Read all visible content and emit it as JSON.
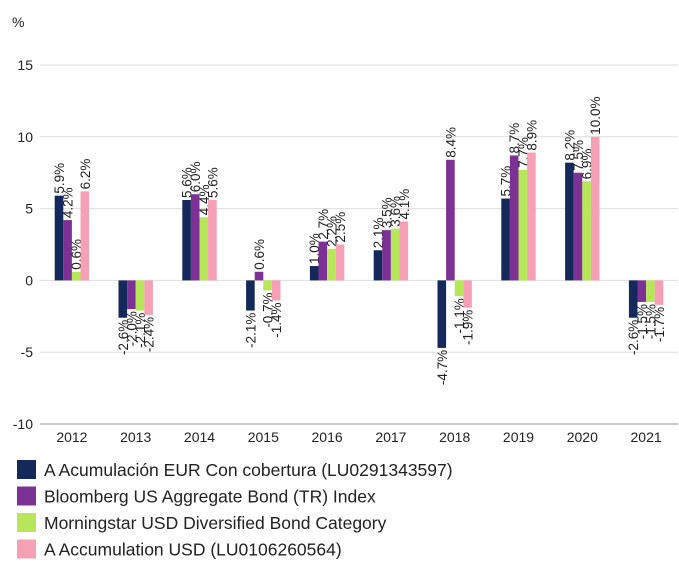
{
  "chart_data": {
    "type": "bar",
    "y_label": "%",
    "categories": [
      "2012",
      "2013",
      "2014",
      "2015",
      "2016",
      "2017",
      "2018",
      "2019",
      "2020",
      "2021"
    ],
    "series": [
      {
        "name": "A Acumulación EUR Con cobertura (LU0291343597)",
        "color": "#14285a",
        "values": [
          5.9,
          -2.6,
          5.6,
          -2.1,
          1.0,
          2.1,
          -4.7,
          5.7,
          8.2,
          -2.6
        ],
        "value_labels": [
          "5.9%",
          "-2.6%",
          "5.6%",
          "-2.1%",
          "1.0%",
          "2.1%",
          "-4.7%",
          "5.7%",
          "8.2%",
          "-2.6%"
        ]
      },
      {
        "name": "Bloomberg US Aggregate Bond (TR) Index",
        "color": "#7b3294",
        "values": [
          4.2,
          -2.0,
          6.0,
          0.6,
          2.7,
          3.5,
          8.4,
          8.7,
          7.5,
          -1.5
        ],
        "value_labels": [
          "4.2%",
          "-2.0%",
          "6.0%",
          "0.6%",
          "2.7%",
          "3.5%",
          "8.4%",
          "8.7%",
          "7.5%",
          "-1.5%"
        ]
      },
      {
        "name": "Morningstar USD Diversified Bond Category",
        "color": "#b8e65a",
        "values": [
          0.6,
          -2.1,
          4.4,
          -0.7,
          2.2,
          3.6,
          -1.1,
          7.7,
          6.9,
          -1.5
        ],
        "value_labels": [
          "0.6%",
          "-2.1%",
          "4.4%",
          "-0.7%",
          "2.2%",
          "3.6%",
          "-1.1%",
          "7.7%",
          "6.9%",
          "-1.5%"
        ]
      },
      {
        "name": "A Accumulation USD (LU0106260564)",
        "color": "#f5a0b4",
        "values": [
          6.2,
          -2.4,
          5.6,
          -1.4,
          2.5,
          4.1,
          -1.9,
          8.9,
          10.0,
          -1.7
        ],
        "value_labels": [
          "6.2%",
          "-2.4%",
          "5.6%",
          "-1.4%",
          "2.5%",
          "4.1%",
          "-1.9%",
          "8.9%",
          "10.0%",
          "-1.7%"
        ]
      }
    ],
    "ylim": [
      -10,
      15
    ],
    "yticks": [
      -10,
      -5,
      0,
      5,
      10,
      15
    ],
    "grid": true,
    "legend": "bottom"
  }
}
